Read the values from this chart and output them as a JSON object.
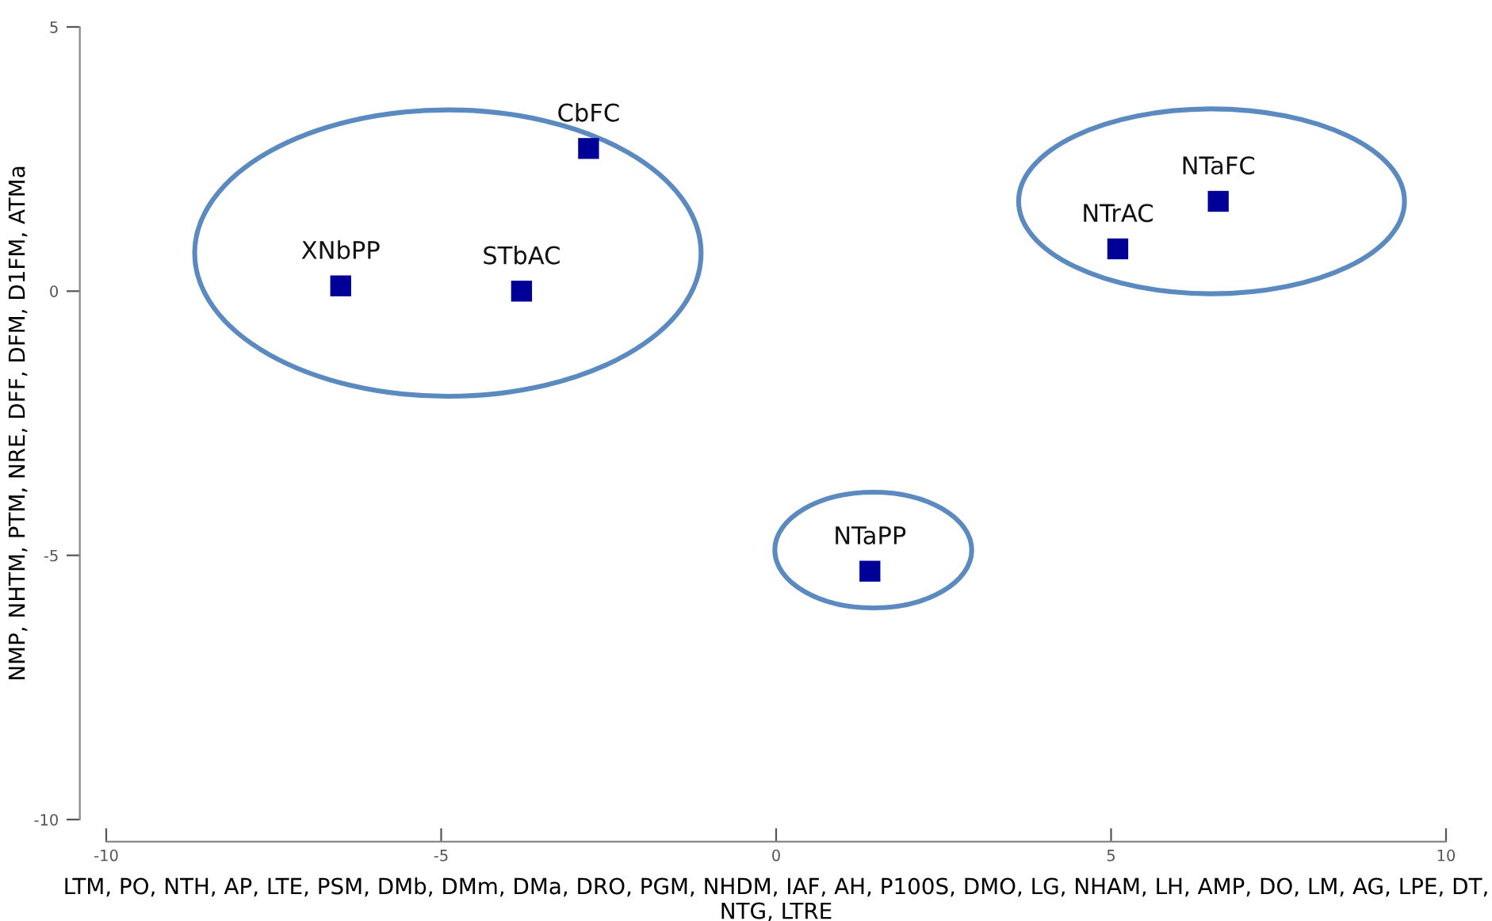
{
  "chart_data": {
    "type": "scatter",
    "xlabel": "LTM, PO, NTH, AP, LTE, PSM, DMb, DMm, DMa, DRO, PGM, NHDM, IAF, AH, P100S, DMO, LG, NHAM, LH, AMP, DO, LM, AG, LPE, DT, NTG, LTRE",
    "ylabel": "NMP, NHTM, PTM, NRE, DFF, DFM, D1FM, ATMa",
    "series": [
      {
        "color": "#000099",
        "x": [
          -6.5,
          -3.8,
          -2.8,
          6.6,
          5.1,
          1.4
        ],
        "values": [
          0.1,
          0.0,
          2.7,
          1.7,
          0.8,
          -5.3
        ]
      }
    ],
    "annotations": [
      {
        "text": "XNbPP",
        "x": -6.5,
        "y": 0.1
      },
      {
        "text": "STbAC",
        "x": -3.8,
        "y": 0.0
      },
      {
        "text": "CbFC",
        "x": -2.8,
        "y": 2.7
      },
      {
        "text": "NTaFC",
        "x": 6.6,
        "y": 1.7
      },
      {
        "text": "NTrAC",
        "x": 5.1,
        "y": 0.8
      },
      {
        "text": "NTaPP",
        "x": 1.4,
        "y": -5.3
      }
    ],
    "xlim": [
      -10,
      10
    ],
    "xticks": [
      -10,
      -5,
      0,
      5,
      10
    ],
    "ylim": [
      -10,
      5
    ],
    "yticks": [
      -10,
      -5,
      0,
      5
    ],
    "marker": "square",
    "grid": false,
    "legend": false
  }
}
